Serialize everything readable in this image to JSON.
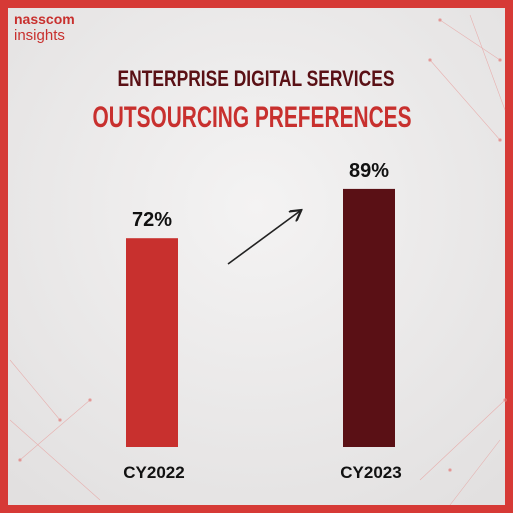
{
  "brand": {
    "name": "nasscom",
    "tagline": "insights"
  },
  "chart_data": {
    "type": "bar",
    "title": "ENTERPRISE DIGITAL SERVICES",
    "subtitle": "OUTSOURCING PREFERENCES",
    "categories": [
      "CY2022",
      "CY2023"
    ],
    "values": [
      72,
      89
    ],
    "value_labels": [
      "72%",
      "89%"
    ],
    "colors": [
      "#c8302e",
      "#5a1015"
    ]
  }
}
